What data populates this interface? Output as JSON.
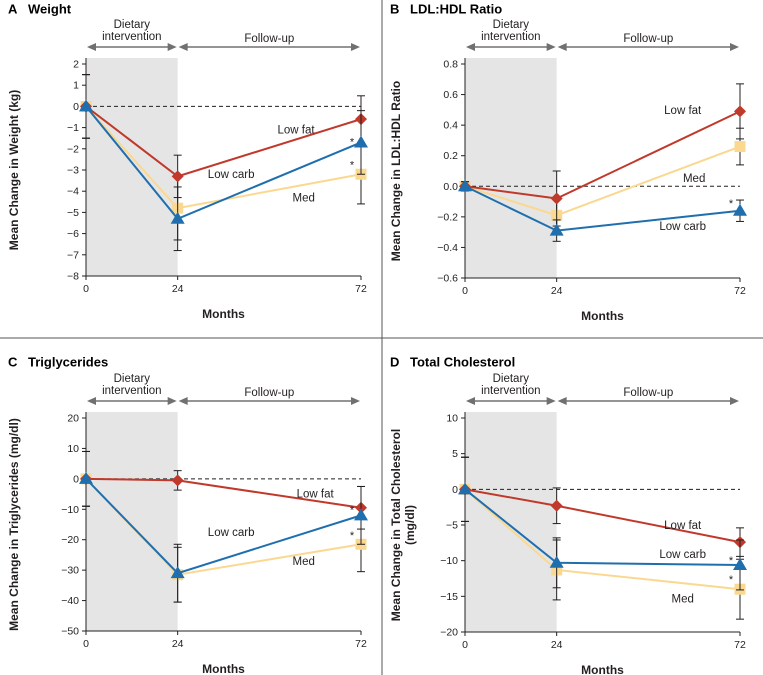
{
  "phases": {
    "diet": "Dietary\nintervention",
    "followup": "Follow-up"
  },
  "colors": {
    "low_fat": "#c0392b",
    "low_carb": "#1f6fae",
    "med": "#fbd890",
    "shade": "#e5e5e5"
  },
  "chart_data": [
    {
      "type": "line",
      "panel": "A",
      "title": "Weight",
      "xlabel": "Months",
      "ylabel": "Mean Change in Weight (kg)",
      "x": [
        0,
        24,
        72
      ],
      "xticks": [
        "0",
        "24",
        "72"
      ],
      "ylim": [
        -8,
        2
      ],
      "yticks": [
        2,
        1,
        0,
        -1,
        -2,
        -3,
        -4,
        -5,
        -6,
        -7,
        -8
      ],
      "series": [
        {
          "name": "Low fat",
          "key": "low_fat",
          "values": [
            0,
            -3.3,
            -0.6
          ],
          "err": [
            1.5,
            1.0,
            1.1
          ],
          "marker": "diamond",
          "label_at": [
            55,
            -1.1
          ],
          "stars": []
        },
        {
          "name": "Low carb",
          "key": "low_carb",
          "values": [
            0,
            -5.3,
            -1.7
          ],
          "err": [
            1.5,
            1.5,
            1.5
          ],
          "marker": "triangle",
          "label_at": [
            38,
            -3.2
          ],
          "stars": [
            -1.65
          ]
        },
        {
          "name": "Med",
          "key": "med",
          "values": [
            0,
            -4.8,
            -3.2
          ],
          "err": [
            1.5,
            1.5,
            1.4
          ],
          "marker": "square",
          "label_at": [
            57,
            -4.3
          ],
          "stars": [
            -2.75
          ]
        }
      ]
    },
    {
      "type": "line",
      "panel": "B",
      "title": "LDL:HDL Ratio",
      "xlabel": "Months",
      "ylabel": "Mean Change in LDL:HDL Ratio",
      "x": [
        0,
        24,
        72
      ],
      "xticks": [
        "0",
        "24",
        "72"
      ],
      "ylim": [
        -0.6,
        0.8
      ],
      "yticks": [
        0.8,
        0.6,
        0.4,
        0.2,
        0.0,
        -0.2,
        -0.4,
        -0.6
      ],
      "series": [
        {
          "name": "Low fat",
          "key": "low_fat",
          "values": [
            0,
            -0.08,
            0.49
          ],
          "err": [
            0.03,
            0.18,
            0.18
          ],
          "marker": "diamond",
          "label_at": [
            57,
            0.5
          ],
          "stars": []
        },
        {
          "name": "Low carb",
          "key": "low_carb",
          "values": [
            0,
            -0.29,
            -0.16
          ],
          "err": [
            0.03,
            0.07,
            0.07
          ],
          "marker": "triangle",
          "label_at": [
            57,
            -0.26
          ],
          "stars": [
            -0.11
          ]
        },
        {
          "name": "Med",
          "key": "med",
          "values": [
            0,
            -0.19,
            0.26
          ],
          "err": [
            0.03,
            0.1,
            0.12
          ],
          "marker": "square",
          "label_at": [
            60,
            0.055
          ],
          "stars": []
        }
      ]
    },
    {
      "type": "line",
      "panel": "C",
      "title": "Triglycerides",
      "xlabel": "Months",
      "ylabel": "Mean Change in Triglycerides (mg/dl)",
      "x": [
        0,
        24,
        72
      ],
      "xticks": [
        "0",
        "24",
        "72"
      ],
      "ylim": [
        -50,
        20
      ],
      "yticks": [
        20,
        10,
        0,
        -10,
        -20,
        -30,
        -40,
        -50
      ],
      "series": [
        {
          "name": "Low fat",
          "key": "low_fat",
          "values": [
            0,
            -0.5,
            -9.5
          ],
          "err": [
            9,
            3.2,
            7
          ],
          "marker": "diamond",
          "label_at": [
            60,
            -4.8
          ],
          "stars": []
        },
        {
          "name": "Low carb",
          "key": "low_carb",
          "values": [
            0,
            -31,
            -12
          ],
          "err": [
            9,
            9.5,
            9.5
          ],
          "marker": "triangle",
          "label_at": [
            38,
            -17.5
          ],
          "stars": [
            -10
          ]
        },
        {
          "name": "Med",
          "key": "med",
          "values": [
            0,
            -31.5,
            -21.5
          ],
          "err": [
            9,
            9,
            9
          ],
          "marker": "square",
          "label_at": [
            57,
            -27
          ],
          "stars": [
            -18.5
          ]
        }
      ]
    },
    {
      "type": "line",
      "panel": "D",
      "title": "Total Cholesterol",
      "xlabel": "Months",
      "ylabel": "Mean Change in Total Cholesterol\n(mg/dl)",
      "x": [
        0,
        24,
        72
      ],
      "xticks": [
        "0",
        "24",
        "72"
      ],
      "ylim": [
        -20,
        10
      ],
      "yticks": [
        10,
        5,
        0,
        -5,
        -10,
        -15,
        -20
      ],
      "series": [
        {
          "name": "Low fat",
          "key": "low_fat",
          "values": [
            0,
            -2.3,
            -7.4
          ],
          "err": [
            4.5,
            2.5,
            2
          ],
          "marker": "diamond",
          "label_at": [
            57,
            -5
          ],
          "stars": []
        },
        {
          "name": "Low carb",
          "key": "low_carb",
          "values": [
            0,
            -10.3,
            -10.6
          ],
          "err": [
            4.5,
            3.5,
            3.5
          ],
          "marker": "triangle",
          "label_at": [
            57,
            -9.1
          ],
          "stars": [
            -9.9
          ]
        },
        {
          "name": "Med",
          "key": "med",
          "values": [
            0,
            -11.3,
            -14
          ],
          "err": [
            4.5,
            4.2,
            4.2
          ],
          "marker": "square",
          "label_at": [
            57,
            -15.3
          ],
          "stars": [
            -12.6
          ]
        }
      ]
    }
  ]
}
